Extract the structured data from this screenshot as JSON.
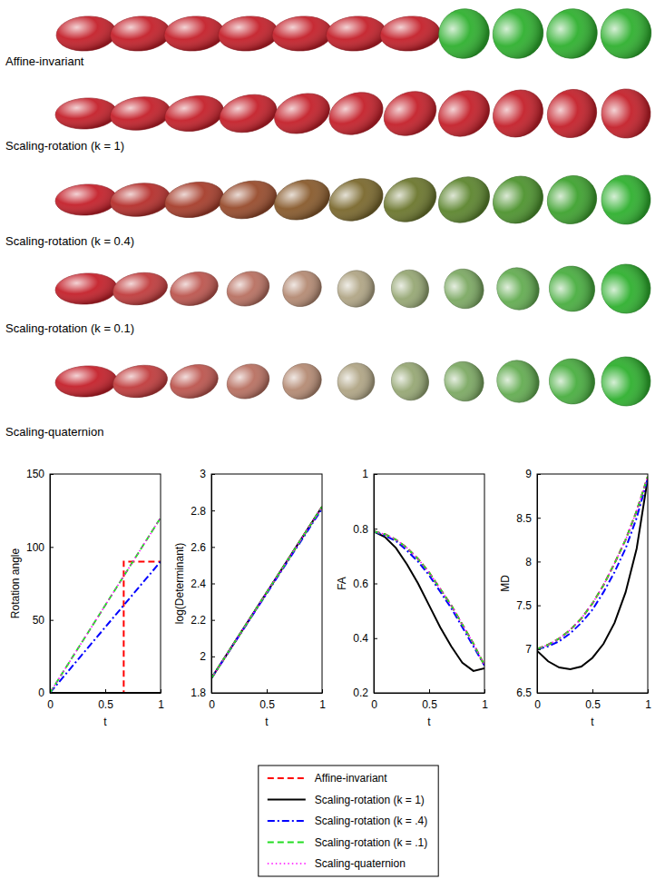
{
  "figure_rows": [
    "Affine-invariant",
    "Scaling-rotation (k = 1)",
    "Scaling-rotation (k = 0.4)",
    "Scaling-rotation (k = 0.1)",
    "Scaling-quaternion"
  ],
  "chart_data": [
    {
      "type": "line",
      "xlabel": "t",
      "ylabel": "Rotation angle",
      "xlim": [
        0,
        1
      ],
      "ylim": [
        0,
        150
      ],
      "xticks": [
        0,
        0.5,
        1
      ],
      "yticks": [
        0,
        50,
        100,
        150
      ],
      "legend": "bottom",
      "series": [
        {
          "name": "Affine-invariant",
          "color": "#ff0000",
          "line_style": "dashed",
          "x": [
            0,
            0.667,
            0.667,
            1
          ],
          "values": [
            0,
            0,
            90,
            90
          ]
        },
        {
          "name": "Scaling-rotation (k = 1)",
          "color": "#000000",
          "line_style": "solid",
          "x": [
            0,
            1
          ],
          "values": [
            0,
            0
          ]
        },
        {
          "name": "Scaling-rotation (k = .4)",
          "color": "#0000ff",
          "line_style": "dashdot",
          "x": [
            0,
            1
          ],
          "values": [
            0,
            90
          ]
        },
        {
          "name": "Scaling-rotation (k = .1)",
          "color": "#22dd22",
          "line_style": "dashed",
          "x": [
            0,
            1
          ],
          "values": [
            0,
            120
          ]
        },
        {
          "name": "Scaling-quaternion",
          "color": "#ff00ff",
          "line_style": "dotted",
          "x": [
            0,
            1
          ],
          "values": [
            0,
            120
          ]
        }
      ]
    },
    {
      "type": "line",
      "xlabel": "t",
      "ylabel": "log(Determinant)",
      "xlim": [
        0,
        1
      ],
      "ylim": [
        1.8,
        3
      ],
      "xticks": [
        0,
        0.5,
        1
      ],
      "yticks": [
        1.8,
        2,
        2.2,
        2.4,
        2.6,
        2.8,
        3
      ],
      "x": [
        0,
        1
      ],
      "series": [
        {
          "name": "Affine-invariant",
          "color": "#ff0000",
          "line_style": "dashed",
          "values": [
            1.88,
            2.82
          ]
        },
        {
          "name": "Scaling-rotation (k = 1)",
          "color": "#000000",
          "line_style": "solid",
          "values": [
            1.88,
            2.82
          ]
        },
        {
          "name": "Scaling-rotation (k = .4)",
          "color": "#0000ff",
          "line_style": "dashdot",
          "values": [
            1.88,
            2.81
          ]
        },
        {
          "name": "Scaling-rotation (k = .1)",
          "color": "#22dd22",
          "line_style": "dashed",
          "values": [
            1.88,
            2.82
          ]
        },
        {
          "name": "Scaling-quaternion",
          "color": "#ff00ff",
          "line_style": "dotted",
          "values": [
            1.88,
            2.82
          ]
        }
      ]
    },
    {
      "type": "line",
      "xlabel": "t",
      "ylabel": "FA",
      "xlim": [
        0,
        1
      ],
      "ylim": [
        0.2,
        1
      ],
      "xticks": [
        0,
        0.5,
        1
      ],
      "yticks": [
        0.2,
        0.4,
        0.6,
        0.8,
        1
      ],
      "x": [
        0,
        0.1,
        0.2,
        0.3,
        0.4,
        0.5,
        0.6,
        0.7,
        0.8,
        0.9,
        1
      ],
      "series": [
        {
          "name": "Affine-invariant",
          "color": "#ff0000",
          "line_style": "dashed",
          "values": [
            0.79,
            0.78,
            0.76,
            0.73,
            0.69,
            0.64,
            0.58,
            0.52,
            0.45,
            0.38,
            0.3
          ]
        },
        {
          "name": "Scaling-rotation (k = 1)",
          "color": "#000000",
          "line_style": "solid",
          "values": [
            0.79,
            0.77,
            0.73,
            0.67,
            0.6,
            0.52,
            0.44,
            0.37,
            0.31,
            0.28,
            0.29
          ]
        },
        {
          "name": "Scaling-rotation (k = .4)",
          "color": "#0000ff",
          "line_style": "dashdot",
          "values": [
            0.79,
            0.775,
            0.755,
            0.72,
            0.68,
            0.63,
            0.57,
            0.51,
            0.44,
            0.37,
            0.3
          ]
        },
        {
          "name": "Scaling-rotation (k = .1)",
          "color": "#22dd22",
          "line_style": "dashed",
          "values": [
            0.79,
            0.78,
            0.76,
            0.73,
            0.69,
            0.64,
            0.58,
            0.52,
            0.45,
            0.38,
            0.3
          ]
        },
        {
          "name": "Scaling-quaternion",
          "color": "#ff00ff",
          "line_style": "dotted",
          "values": [
            0.79,
            0.78,
            0.76,
            0.73,
            0.69,
            0.64,
            0.58,
            0.52,
            0.45,
            0.38,
            0.3
          ]
        }
      ]
    },
    {
      "type": "line",
      "xlabel": "t",
      "ylabel": "MD",
      "xlim": [
        0,
        1
      ],
      "ylim": [
        6.5,
        9
      ],
      "xticks": [
        0,
        0.5,
        1
      ],
      "yticks": [
        6.5,
        7,
        7.5,
        8,
        8.5,
        9
      ],
      "x": [
        0,
        0.1,
        0.2,
        0.3,
        0.4,
        0.5,
        0.6,
        0.7,
        0.8,
        0.9,
        1
      ],
      "series": [
        {
          "name": "Affine-invariant",
          "color": "#ff0000",
          "line_style": "dashed",
          "values": [
            7.0,
            7.05,
            7.12,
            7.22,
            7.35,
            7.52,
            7.73,
            7.98,
            8.25,
            8.58,
            8.97
          ]
        },
        {
          "name": "Scaling-rotation (k = 1)",
          "color": "#000000",
          "line_style": "solid",
          "values": [
            6.98,
            6.86,
            6.79,
            6.77,
            6.8,
            6.9,
            7.06,
            7.3,
            7.65,
            8.15,
            8.95
          ]
        },
        {
          "name": "Scaling-rotation (k = .4)",
          "color": "#0000ff",
          "line_style": "dashdot",
          "values": [
            7.0,
            7.03,
            7.09,
            7.18,
            7.3,
            7.45,
            7.65,
            7.88,
            8.15,
            8.5,
            8.95
          ]
        },
        {
          "name": "Scaling-rotation (k = .1)",
          "color": "#22dd22",
          "line_style": "dashed",
          "values": [
            7.0,
            7.05,
            7.12,
            7.22,
            7.35,
            7.52,
            7.73,
            7.98,
            8.25,
            8.58,
            8.97
          ]
        },
        {
          "name": "Scaling-quaternion",
          "color": "#ff00ff",
          "line_style": "dotted",
          "values": [
            7.0,
            7.05,
            7.12,
            7.22,
            7.35,
            7.52,
            7.73,
            7.98,
            8.25,
            8.58,
            8.97
          ]
        }
      ]
    }
  ]
}
